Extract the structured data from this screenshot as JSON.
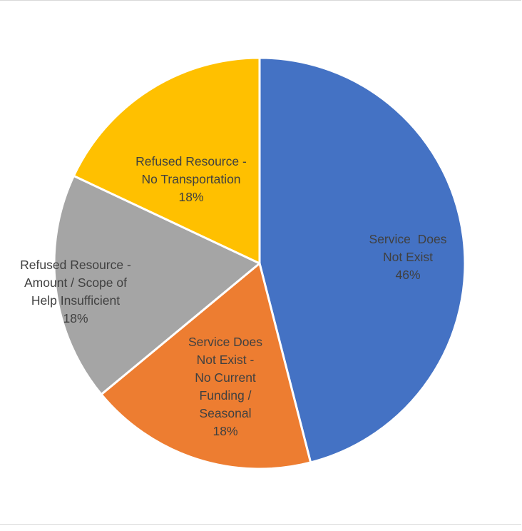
{
  "chart_data": {
    "type": "pie",
    "title": "",
    "start_angle_deg": 0,
    "direction": "clockwise",
    "slices": [
      {
        "label_lines": [
          "Service  Does",
          "Not Exist"
        ],
        "percent_label": "46%",
        "value": 46,
        "color": "#4472C4",
        "label_color": "#404040"
      },
      {
        "label_lines": [
          "Service Does",
          "Not Exist -",
          "No Current",
          "Funding /",
          "Seasonal"
        ],
        "percent_label": "18%",
        "value": 18,
        "color": "#ED7D31",
        "label_color": "#404040"
      },
      {
        "label_lines": [
          "Refused Resource -",
          "Amount / Scope of",
          "Help Insufficient"
        ],
        "percent_label": "18%",
        "value": 18,
        "color": "#A5A5A5",
        "label_color": "#404040"
      },
      {
        "label_lines": [
          "Refused Resource -",
          "No Transportation"
        ],
        "percent_label": "18%",
        "value": 18,
        "color": "#FFC000",
        "label_color": "#404040"
      }
    ]
  }
}
